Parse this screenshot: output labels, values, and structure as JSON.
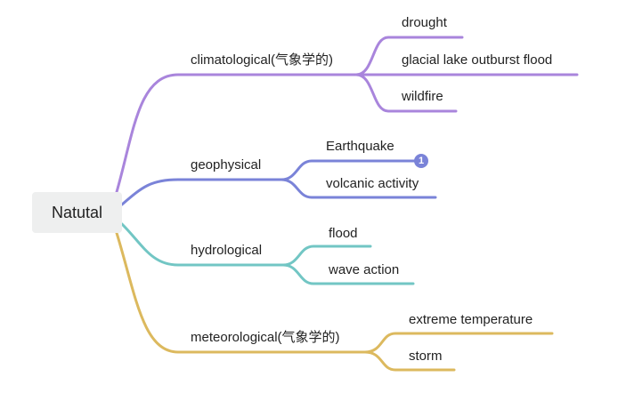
{
  "root": {
    "label": "Natutal"
  },
  "branches": [
    {
      "label": "climatological(气象学的)",
      "color": "#a985dc",
      "children": [
        {
          "label": "drought"
        },
        {
          "label": "glacial lake outburst flood"
        },
        {
          "label": "wildfire"
        }
      ]
    },
    {
      "label": "geophysical",
      "color": "#7a83d8",
      "children": [
        {
          "label": "Earthquake",
          "badge": "1"
        },
        {
          "label": "volcanic activity"
        }
      ]
    },
    {
      "label": "hydrological",
      "color": "#72c6c4",
      "children": [
        {
          "label": "flood"
        },
        {
          "label": "wave action"
        }
      ]
    },
    {
      "label": "meteorological(气象学的)",
      "color": "#dcb95e",
      "children": [
        {
          "label": "extreme temperature"
        },
        {
          "label": "storm"
        }
      ]
    }
  ]
}
